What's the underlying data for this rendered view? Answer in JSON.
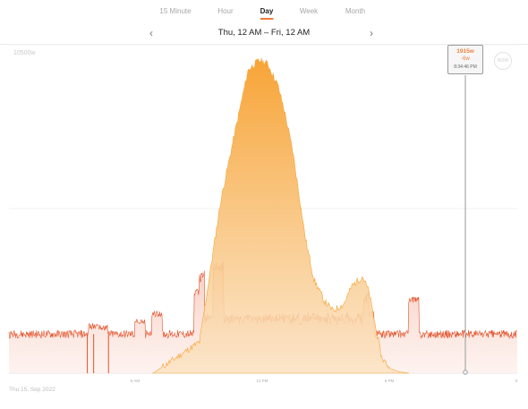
{
  "tabs": [
    {
      "label": "15 Minute",
      "active": false
    },
    {
      "label": "Hour",
      "active": false
    },
    {
      "label": "Day",
      "active": true
    },
    {
      "label": "Week",
      "active": false
    },
    {
      "label": "Month",
      "active": false
    }
  ],
  "nav": {
    "title": "Thu, 12 AM – Fri, 12 AM",
    "prev_icon": "chevron-left-icon",
    "next_icon": "chevron-right-icon"
  },
  "chart": {
    "max_label": "10500w",
    "now_label": "NOW",
    "date_label": "Thu 15, Sep 2022",
    "x_ticks": [
      "6 AM",
      "12 PM",
      "6 PM",
      "0"
    ]
  },
  "tooltip": {
    "power": "1915w",
    "delta": "-6w",
    "time": "8:34:46 PM"
  },
  "colors": {
    "accent": "#f07a3a",
    "solar": "#f7a436",
    "consumption": "#e2522a"
  },
  "chart_data": {
    "type": "area",
    "title": "",
    "xlabel": "",
    "ylabel": "",
    "x_range_hours": [
      0,
      24
    ],
    "y_max_label": "10500w",
    "series": [
      {
        "kind": "solar",
        "hours": [
          6.8,
          9.0,
          9.4,
          10.0,
          10.7,
          11.3,
          11.8,
          12.2,
          12.7,
          13.0,
          13.4,
          14.0,
          14.4,
          14.9,
          15.3,
          15.8,
          16.2,
          16.7,
          17.0,
          17.3,
          17.6,
          18.0,
          18.4,
          18.9
        ],
        "watts": [
          0,
          1000,
          2800,
          5500,
          7800,
          9700,
          10000,
          9900,
          9200,
          8400,
          7100,
          4300,
          3000,
          2300,
          2000,
          2200,
          2800,
          3100,
          2600,
          1500,
          500,
          150,
          50,
          0
        ]
      },
      {
        "kind": "consumption",
        "baseline_watts": 1250,
        "events": [
          {
            "hour": 4.0,
            "watts": 1500
          },
          {
            "hour": 4.4,
            "watts": 1450
          },
          {
            "hour": 6.2,
            "watts": 1650
          },
          {
            "hour": 7.0,
            "watts": 1900
          },
          {
            "hour": 9.0,
            "watts": 2600
          },
          {
            "hour": 9.9,
            "watts": 2900
          },
          {
            "hour": 17.0,
            "watts": 1900
          },
          {
            "hour": 19.1,
            "watts": 2350
          }
        ]
      }
    ]
  }
}
